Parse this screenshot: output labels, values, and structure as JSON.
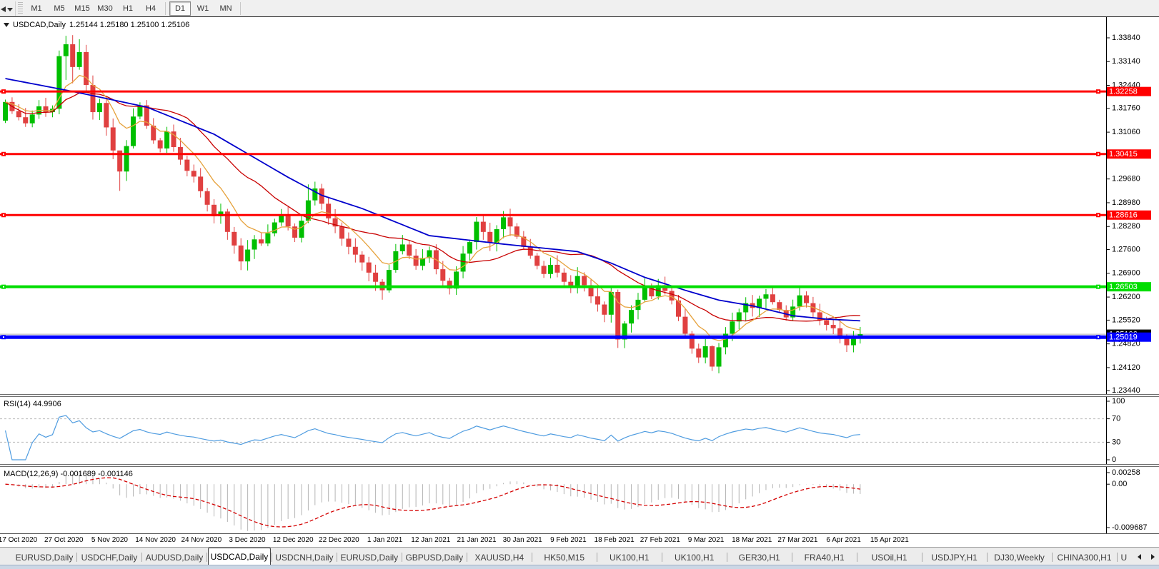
{
  "toolbar": {
    "timeframes": [
      "M1",
      "M5",
      "M15",
      "M30",
      "H1",
      "H4",
      "D1",
      "W1",
      "MN"
    ],
    "active": "D1"
  },
  "header": {
    "symbol_title": "USDCAD,Daily",
    "quotes_text": "1.25144 1.25180 1.25100 1.25106"
  },
  "rsi_panel": {
    "label": "RSI(14)",
    "value": "44.9906"
  },
  "macd_panel": {
    "label": "MACD(12,26,9)",
    "values": "-0.001689 -0.001146"
  },
  "tabs": {
    "active_index": 3,
    "partial_label": "U",
    "items": [
      "EURUSD,Daily",
      "USDCHF,Daily",
      "AUDUSD,Daily",
      "USDCAD,Daily",
      "USDCNH,Daily",
      "EURUSD,Daily",
      "GBPUSD,Daily",
      "XAUUSD,H4",
      "HK50,M15",
      "UK100,H1",
      "UK100,H1",
      "GER30,H1",
      "FRA40,H1",
      "USOil,H1",
      "USDJPY,H1",
      "DJ30,Weekly",
      "CHINA300,H1"
    ]
  },
  "chart_data": {
    "type": "candlestick",
    "symbol": "USDCAD",
    "timeframe": "Daily",
    "note": "OHLC estimated from pixels; open = previous close",
    "ylim": [
      1.2334,
      1.3445
    ],
    "first_open": 1.314,
    "closes": [
      1.3195,
      1.3168,
      1.315,
      1.3132,
      1.3158,
      1.3182,
      1.3165,
      1.3175,
      1.333,
      1.3365,
      1.3298,
      1.3342,
      1.3245,
      1.3165,
      1.3192,
      1.312,
      1.3052,
      1.299,
      1.3065,
      1.3152,
      1.3185,
      1.3125,
      1.3082,
      1.3058,
      1.3108,
      1.3062,
      1.3025,
      1.2992,
      1.2975,
      1.2932,
      1.2892,
      1.2858,
      1.2872,
      1.2812,
      1.2772,
      1.2725,
      1.276,
      1.279,
      1.2778,
      1.2808,
      1.284,
      1.2862,
      1.2828,
      1.2795,
      1.2845,
      1.2905,
      1.294,
      1.2895,
      1.2852,
      1.2828,
      1.2792,
      1.2768,
      1.2745,
      1.2722,
      1.2692,
      1.2665,
      1.264,
      1.27,
      1.2755,
      1.2775,
      1.2742,
      1.2712,
      1.2735,
      1.2758,
      1.2702,
      1.2668,
      1.2645,
      1.2695,
      1.2748,
      1.2782,
      1.2842,
      1.2812,
      1.278,
      1.282,
      1.2855,
      1.2828,
      1.2798,
      1.2768,
      1.2742,
      1.2712,
      1.2688,
      1.2715,
      1.2692,
      1.2665,
      1.2648,
      1.2682,
      1.2655,
      1.2622,
      1.2598,
      1.2568,
      1.2635,
      1.2495,
      1.2542,
      1.2582,
      1.2612,
      1.2648,
      1.2622,
      1.2655,
      1.2638,
      1.261,
      1.2562,
      1.2512,
      1.2468,
      1.2442,
      1.2475,
      1.2415,
      1.2472,
      1.2512,
      1.2548,
      1.2575,
      1.2602,
      1.2588,
      1.2615,
      1.2628,
      1.2605,
      1.2582,
      1.256,
      1.2592,
      1.2625,
      1.2602,
      1.2575,
      1.2552,
      1.2538,
      1.2528,
      1.2502,
      1.2478,
      1.2505,
      1.25106
    ],
    "wick_overrides": {
      "9": [
        1.339,
        1.326
      ],
      "10": [
        1.3392,
        1.325
      ],
      "11": [
        1.338,
        1.329
      ],
      "17": [
        1.3005,
        1.2933
      ],
      "45": [
        1.2952,
        1.2838
      ],
      "46": [
        1.296,
        1.289
      ],
      "91": [
        1.2642,
        1.247
      ],
      "105": [
        1.2478,
        1.2402
      ]
    },
    "colors": {
      "bull": "#00bf00",
      "bear": "#e04040",
      "ma_fast": "#e6a23c",
      "ma_mid": "#c80000",
      "ma_slow": "#0000cc",
      "rsi": "#4f9ce0",
      "macd_hist": "#b4b4b4",
      "macd_signal": "#d40000",
      "bid_line": "#b0b0b0"
    },
    "indicators": {
      "ma_fast": {
        "type": "EMA",
        "period": 8
      },
      "ma_mid": {
        "type": "SMA",
        "period": 20
      },
      "ma_slow": {
        "type": "anchors",
        "points": [
          [
            0,
            1.3264
          ],
          [
            10,
            1.3226
          ],
          [
            21,
            1.318
          ],
          [
            31,
            1.31
          ],
          [
            42,
            1.2973
          ],
          [
            47,
            1.292
          ],
          [
            53,
            1.2881
          ],
          [
            63,
            1.2801
          ],
          [
            74,
            1.2776
          ],
          [
            85,
            1.2754
          ],
          [
            90,
            1.272
          ],
          [
            95,
            1.2678
          ],
          [
            101,
            1.264
          ],
          [
            106,
            1.2611
          ],
          [
            111,
            1.2594
          ],
          [
            117,
            1.2565
          ],
          [
            122,
            1.2555
          ],
          [
            127,
            1.255
          ]
        ]
      },
      "rsi": {
        "period": 14,
        "current": 44.9906,
        "levels": [
          70,
          30
        ],
        "range": [
          0,
          100
        ]
      },
      "macd": {
        "fast": 12,
        "slow": 26,
        "signal": 9,
        "current_macd": -0.001689,
        "current_signal": -0.001146
      }
    },
    "hlines": [
      {
        "value": 1.32258,
        "label": "1.32258",
        "color": "#ff0000",
        "width": 3
      },
      {
        "value": 1.30415,
        "label": "1.30415",
        "color": "#ff0000",
        "width": 3
      },
      {
        "value": 1.28616,
        "label": "1.28616",
        "color": "#ff0000",
        "width": 3
      },
      {
        "value": 1.26503,
        "label": "1.26503",
        "color": "#00dd00",
        "width": 4
      },
      {
        "value": 1.25019,
        "label": "1.25019",
        "color": "#0000ff",
        "width": 5
      }
    ],
    "bid": {
      "value": 1.25106,
      "label": "1.25106"
    },
    "price_ticks": [
      "1.33840",
      "1.33140",
      "1.32440",
      "1.31760",
      "1.31060",
      "1.30360",
      "1.29680",
      "1.28980",
      "1.28280",
      "1.27600",
      "1.26900",
      "1.26200",
      "1.25520",
      "1.24820",
      "1.24120",
      "1.23440"
    ],
    "rsi_ticks": [
      "100",
      "70",
      "30",
      "0"
    ],
    "macd_ticks": [
      "0.00258",
      "0.00",
      "-0.009687"
    ],
    "x_dates": [
      "17 Oct 2020",
      "27 Oct 2020",
      "5 Nov 2020",
      "14 Nov 2020",
      "24 Nov 2020",
      "3 Dec 2020",
      "12 Dec 2020",
      "22 Dec 2020",
      "1 Jan 2021",
      "12 Jan 2021",
      "21 Jan 2021",
      "30 Jan 2021",
      "9 Feb 2021",
      "18 Feb 2021",
      "27 Feb 2021",
      "9 Mar 2021",
      "18 Mar 2021",
      "27 Mar 2021",
      "6 Apr 2021",
      "15 Apr 2021"
    ]
  }
}
